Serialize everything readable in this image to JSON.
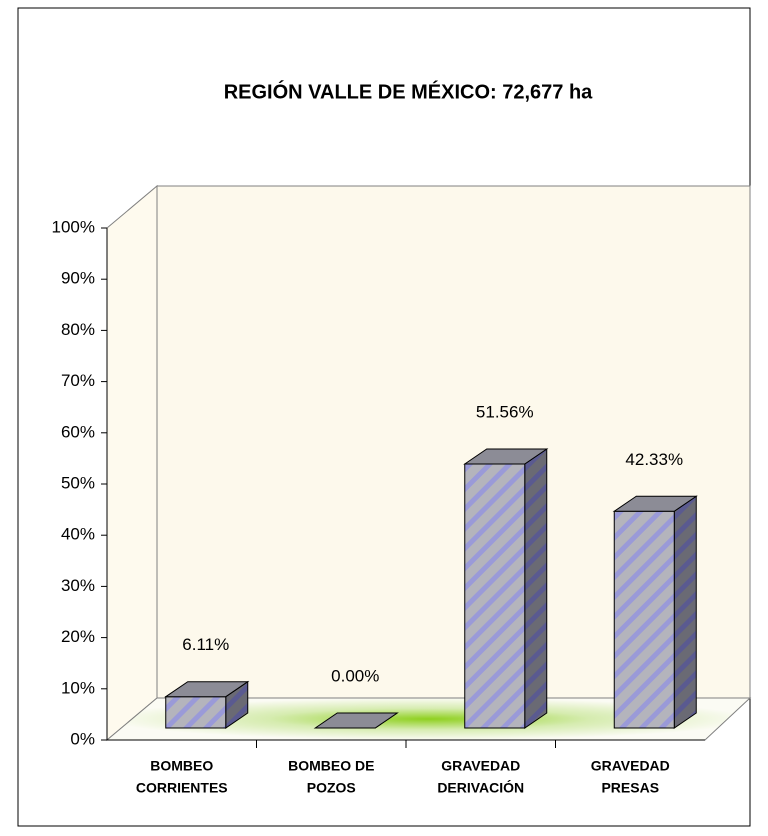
{
  "chart_data": {
    "type": "bar3d",
    "title": "REGIÓN VALLE DE MÉXICO: 72,677 ha",
    "categories": [
      [
        "BOMBEO",
        "CORRIENTES"
      ],
      [
        "BOMBEO DE",
        "POZOS"
      ],
      [
        "GRAVEDAD",
        "DERIVACIÓN"
      ],
      [
        "GRAVEDAD",
        "PRESAS"
      ]
    ],
    "values": [
      6.11,
      0.0,
      51.56,
      42.33
    ],
    "value_labels": [
      "6.11%",
      "0.00%",
      "51.56%",
      "42.33%"
    ],
    "color": "#a8a8d0",
    "ylim": [
      0,
      100
    ],
    "yticks": [
      {
        "value": 0,
        "label": "0%"
      },
      {
        "value": 10,
        "label": "10%"
      },
      {
        "value": 20,
        "label": "20%"
      },
      {
        "value": 30,
        "label": "30%"
      },
      {
        "value": 40,
        "label": "40%"
      },
      {
        "value": 50,
        "label": "50%"
      },
      {
        "value": 60,
        "label": "60%"
      },
      {
        "value": 70,
        "label": "70%"
      },
      {
        "value": 80,
        "label": "80%"
      },
      {
        "value": 90,
        "label": "90%"
      },
      {
        "value": 100,
        "label": "100%"
      }
    ],
    "grid": false
  }
}
